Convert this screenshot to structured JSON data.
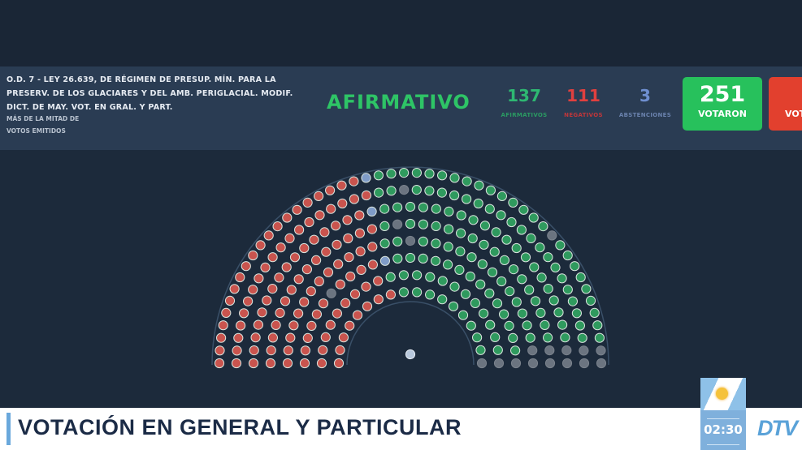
{
  "banner": {
    "description": "O.D. 7 - LEY 26.639, DE RÉGIMEN DE PRESUP. MÍN. PARA LA PRESERV. DE LOS GLACIARES Y DEL AMB. PERIGLACIAL. MODIF. DICT. DE MAY. VOT. EN GRAL. Y PART.",
    "majority_line1": "MÁS DE LA MITAD DE",
    "majority_line2": "VOTOS EMITIDOS",
    "result": "AFIRMATIVO",
    "afirmativos": {
      "value": "137",
      "label": "AFIRMATIVOS",
      "color": "#2eb872"
    },
    "negativos": {
      "value": "111",
      "label": "NEGATIVOS",
      "color": "#e0403f"
    },
    "abstenciones": {
      "value": "3",
      "label": "ABSTENCIONES",
      "color": "#6f8fd0"
    },
    "votaron": {
      "value": "251",
      "label": "VOTARON",
      "color": "#27c15c"
    },
    "no_votaron": {
      "label": "VOT",
      "color": "#e2402e"
    }
  },
  "hemicycle": {
    "negative": 111,
    "abstention": 3,
    "affirmative": 137,
    "absent": 6,
    "colors": {
      "negative": "#c9544e",
      "affirmative": "#2f9a5e",
      "abstention": "#7f9cc8",
      "absent": "#6b7480"
    }
  },
  "lower_third": {
    "title": "VOTACIÓN EN GENERAL Y PARTICULAR"
  },
  "clock": {
    "time": "02:30"
  },
  "logo": {
    "text": "DTV"
  }
}
